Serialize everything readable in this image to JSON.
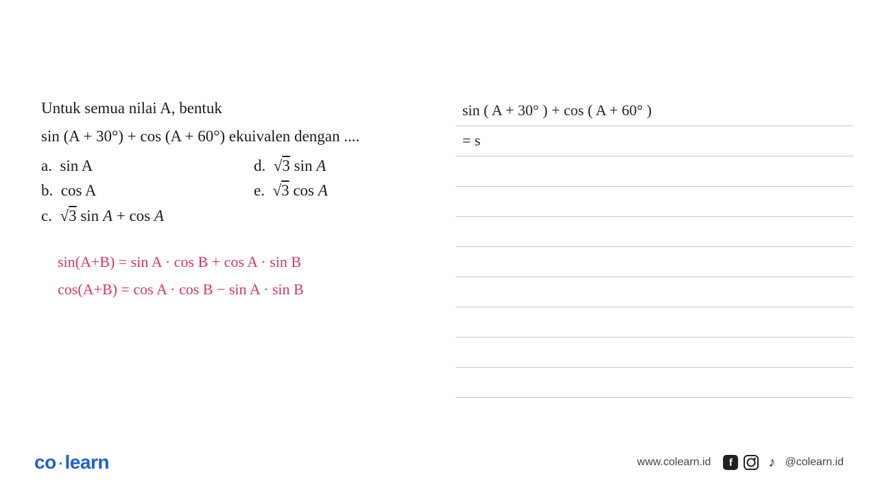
{
  "question": {
    "line1": "Untuk semua nilai A, bentuk",
    "line2_prefix": "sin (A + 30°) + cos (A + 60°) ekuivalen dengan ....",
    "options": {
      "a": "sin A",
      "b": "cos A",
      "c_prefix": "√3 sin A + cos A",
      "d_prefix": "√3 sin A",
      "e_prefix": "√3 cos A"
    }
  },
  "formulas": {
    "line1": "sin(A+B) = sin A · cos B + cos A · sin B",
    "line2": "cos(A+B) = cos A · cos B − sin A · sin B"
  },
  "working": {
    "line1": "sin ( A + 30° ) + cos ( A + 60° )",
    "line2": "= s"
  },
  "footer": {
    "logo_co": "co",
    "logo_learn": "learn",
    "url": "www.colearn.id",
    "handle": "@colearn.id"
  },
  "colors": {
    "pink": "#d6336c",
    "blue": "#1e5fd9",
    "text": "#1a1a1a",
    "rule": "#c6c6c6",
    "bg": "#ffffff"
  }
}
